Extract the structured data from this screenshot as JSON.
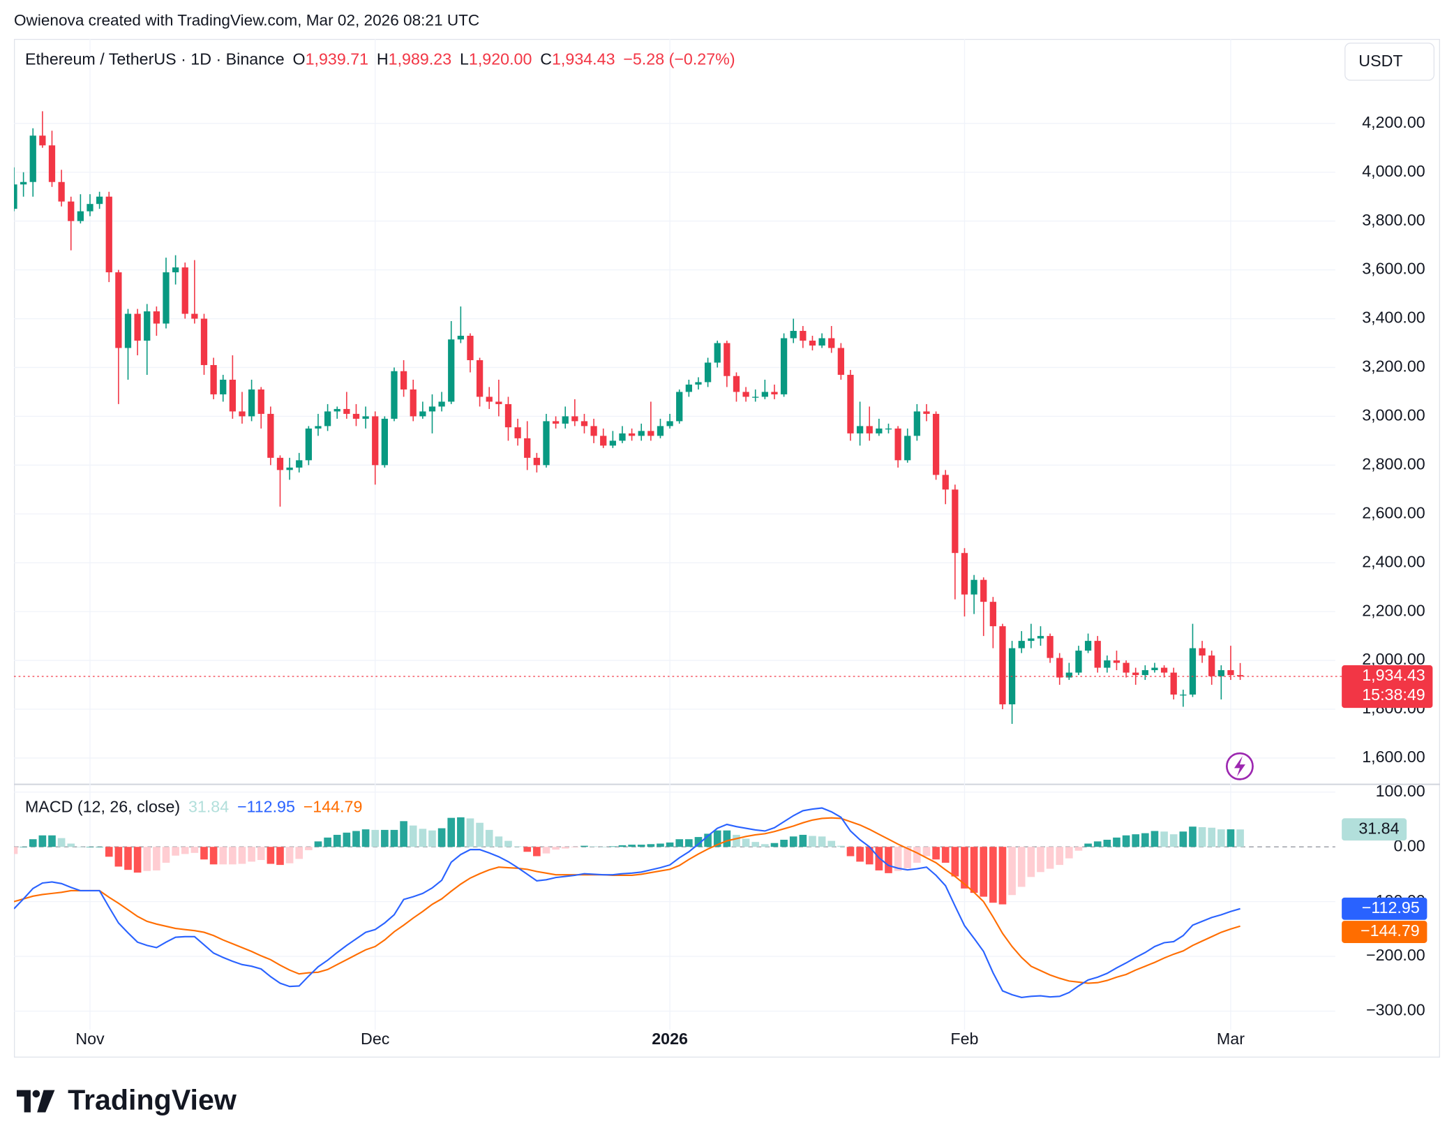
{
  "attribution": "Owienova created with TradingView.com, Mar 02, 2026 08:21 UTC",
  "logo": "TradingView",
  "chart_data": [
    {
      "type": "candlestick",
      "symbol": "Ethereum / TetherUS · 1D · Binance",
      "ohlc": [
        {
          "key": "O",
          "value": "1,939.71"
        },
        {
          "key": "H",
          "value": "1,989.23"
        },
        {
          "key": "L",
          "value": "1,920.00"
        },
        {
          "key": "C",
          "value": "1,934.43"
        }
      ],
      "change": "−5.28 (−0.27%)",
      "currency": "USDT",
      "last_price_label": "1,934.43",
      "countdown": "15:38:49",
      "colors": {
        "up": "#089981",
        "down": "#f23645"
      },
      "grid": true,
      "xlim": [
        0,
        139
      ],
      "xticks": [
        {
          "value": 8,
          "label": "Nov"
        },
        {
          "value": 38,
          "label": "Dec"
        },
        {
          "value": 69,
          "label": "2026"
        },
        {
          "value": 100,
          "label": "Feb"
        },
        {
          "value": 128,
          "label": "Mar"
        }
      ],
      "ylim": [
        1494,
        4546
      ],
      "yticks": [
        {
          "value": 1600,
          "label": "1,600.00"
        },
        {
          "value": 1800,
          "label": "1,800.00"
        },
        {
          "value": 2000,
          "label": "2,000.00"
        },
        {
          "value": 2200,
          "label": "2,200.00"
        },
        {
          "value": 2400,
          "label": "2,400.00"
        },
        {
          "value": 2600,
          "label": "2,600.00"
        },
        {
          "value": 2800,
          "label": "2,800.00"
        },
        {
          "value": 3000,
          "label": "3,000.00"
        },
        {
          "value": 3200,
          "label": "3,200.00"
        },
        {
          "value": 3400,
          "label": "3,400.00"
        },
        {
          "value": 3600,
          "label": "3,600.00"
        },
        {
          "value": 3800,
          "label": "3,800.00"
        },
        {
          "value": 4000,
          "label": "4,000.00"
        },
        {
          "value": 4200,
          "label": "4,200.00"
        }
      ],
      "open": [
        3850,
        3950,
        3960,
        4150,
        4110,
        3960,
        3880,
        3800,
        3840,
        3870,
        3900,
        3590,
        3280,
        3420,
        3310,
        3430,
        3380,
        3590,
        3610,
        3420,
        3400,
        3210,
        3090,
        3150,
        3020,
        3000,
        3110,
        3010,
        2830,
        2780,
        2790,
        2820,
        2950,
        2960,
        3020,
        3030,
        3010,
        2990,
        3000,
        2800,
        2990,
        3185,
        3110,
        3000,
        3020,
        3040,
        3060,
        3315,
        3330,
        3230,
        3080,
        3060,
        3050,
        2955,
        2910,
        2830,
        2800,
        2980,
        2970,
        3000,
        2980,
        2960,
        2920,
        2880,
        2900,
        2930,
        2920,
        2940,
        2920,
        2960,
        2980,
        3100,
        3130,
        3140,
        3220,
        3300,
        3165,
        3100,
        3080,
        3080,
        3100,
        3090,
        3320,
        3350,
        3310,
        3290,
        3320,
        3280,
        3170,
        2930,
        2960,
        2930,
        2950,
        2950,
        2820,
        2920,
        3020,
        3010,
        2760,
        2700,
        2440,
        2270,
        2330,
        2240,
        2140,
        1820,
        2050,
        2080,
        2090,
        2100,
        2010,
        1930,
        1950,
        2040,
        2080,
        1970,
        2000,
        1990,
        1950,
        1940,
        1960,
        1970,
        1950,
        1860,
        1860,
        2050,
        2020,
        1935,
        1960,
        1939.71
      ],
      "high": [
        4020,
        4000,
        4180,
        4250,
        4170,
        4010,
        3900,
        3910,
        3910,
        3920,
        3920,
        3600,
        3440,
        3440,
        3460,
        3450,
        3650,
        3660,
        3630,
        3640,
        3420,
        3240,
        3170,
        3250,
        3100,
        3150,
        3120,
        3040,
        2840,
        2830,
        2850,
        2960,
        3010,
        3050,
        3040,
        3100,
        3050,
        3040,
        3020,
        3000,
        3200,
        3230,
        3150,
        3060,
        3090,
        3100,
        3390,
        3450,
        3340,
        3240,
        3120,
        3150,
        3080,
        2990,
        2980,
        2850,
        3010,
        3000,
        3040,
        3070,
        3010,
        2990,
        2950,
        2940,
        2960,
        2950,
        2970,
        3060,
        2990,
        3010,
        3110,
        3150,
        3160,
        3240,
        3310,
        3310,
        3180,
        3120,
        3110,
        3150,
        3130,
        3340,
        3400,
        3370,
        3330,
        3340,
        3370,
        3300,
        3190,
        3060,
        3040,
        2990,
        2970,
        2960,
        2950,
        3050,
        3050,
        3020,
        2780,
        2720,
        2460,
        2350,
        2340,
        2260,
        2150,
        2080,
        2120,
        2150,
        2140,
        2110,
        2030,
        1990,
        2060,
        2110,
        2100,
        2020,
        2040,
        2000,
        1970,
        1980,
        1990,
        1980,
        1970,
        1880,
        2150,
        2080,
        2040,
        1980,
        2060,
        1989.23
      ],
      "low": [
        3840,
        3900,
        3900,
        4100,
        3940,
        3860,
        3680,
        3790,
        3820,
        3850,
        3550,
        3050,
        3150,
        3250,
        3170,
        3330,
        3360,
        3540,
        3400,
        3380,
        3170,
        3070,
        3060,
        2990,
        2970,
        2980,
        2950,
        2800,
        2630,
        2740,
        2770,
        2800,
        2920,
        2940,
        2990,
        2990,
        2960,
        2950,
        2720,
        2790,
        2980,
        3080,
        2980,
        2990,
        2930,
        3020,
        3050,
        3300,
        3180,
        3040,
        3030,
        3000,
        2900,
        2880,
        2780,
        2770,
        2790,
        2950,
        2950,
        2960,
        2930,
        2890,
        2870,
        2870,
        2890,
        2900,
        2900,
        2900,
        2910,
        2950,
        2970,
        3080,
        3110,
        3120,
        3200,
        3120,
        3060,
        3060,
        3060,
        3070,
        3070,
        3080,
        3300,
        3280,
        3270,
        3280,
        3260,
        3150,
        2900,
        2880,
        2900,
        2920,
        2930,
        2790,
        2810,
        2900,
        2980,
        2740,
        2640,
        2250,
        2180,
        2190,
        2100,
        2050,
        1800,
        1740,
        2030,
        2050,
        2060,
        1990,
        1900,
        1920,
        1940,
        2030,
        1950,
        1950,
        1960,
        1930,
        1900,
        1920,
        1950,
        1930,
        1840,
        1810,
        1850,
        1990,
        1900,
        1840,
        1920,
        1920
      ],
      "close": [
        3950,
        3960,
        4150,
        4110,
        3960,
        3880,
        3800,
        3840,
        3870,
        3900,
        3590,
        3280,
        3420,
        3310,
        3430,
        3380,
        3590,
        3610,
        3420,
        3400,
        3210,
        3090,
        3150,
        3020,
        3000,
        3110,
        3010,
        2830,
        2780,
        2790,
        2820,
        2950,
        2960,
        3020,
        3030,
        3010,
        2990,
        3000,
        2800,
        2990,
        3185,
        3110,
        3000,
        3020,
        3040,
        3060,
        3315,
        3330,
        3230,
        3080,
        3060,
        3050,
        2955,
        2910,
        2830,
        2800,
        2980,
        2970,
        3000,
        2980,
        2960,
        2920,
        2880,
        2900,
        2930,
        2920,
        2940,
        2920,
        2960,
        2980,
        3100,
        3130,
        3140,
        3220,
        3300,
        3165,
        3100,
        3080,
        3080,
        3100,
        3090,
        3320,
        3350,
        3310,
        3290,
        3320,
        3280,
        3170,
        2930,
        2960,
        2930,
        2950,
        2950,
        2820,
        2920,
        3020,
        3010,
        2760,
        2700,
        2440,
        2270,
        2330,
        2240,
        2140,
        1820,
        2050,
        2080,
        2090,
        2100,
        2010,
        1930,
        1950,
        2040,
        2080,
        1970,
        2000,
        1990,
        1950,
        1940,
        1960,
        1970,
        1950,
        1860,
        1860,
        2050,
        2020,
        1935,
        1960,
        1939.71,
        1934.43
      ]
    },
    {
      "type": "macd",
      "title": "MACD (12, 26, close)",
      "labels": {
        "histogram": "31.84",
        "macd": "−112.95",
        "signal": "−144.79"
      },
      "colors": {
        "macd": "#2962ff",
        "signal": "#ff6d00",
        "hist_up_grow": "#26a69a",
        "hist_up_fall": "#b2dfdb",
        "hist_down_grow": "#ff5252",
        "hist_down_fall": "#ffcdd2"
      },
      "ylim": [
        -334,
        115
      ],
      "yticks": [
        {
          "value": -300,
          "label": "−300.00"
        },
        {
          "value": -200,
          "label": "−200.00"
        },
        {
          "value": -100,
          "label": "−100.00"
        },
        {
          "value": 0,
          "label": "0.00"
        },
        {
          "value": 100,
          "label": "100.00"
        }
      ],
      "histogram": [
        -13,
        0,
        14,
        21,
        21,
        16,
        6,
        0,
        0,
        0,
        -18,
        -36,
        -42,
        -47,
        -44,
        -43,
        -29,
        -16,
        -13,
        -11,
        -23,
        -32,
        -32,
        -32,
        -31,
        -27,
        -24,
        -31,
        -33,
        -30,
        -22,
        -6,
        10,
        17,
        22,
        26,
        29,
        32,
        31,
        31,
        31,
        47,
        39,
        33,
        30,
        34,
        53,
        54,
        52,
        44,
        31,
        19,
        11,
        1,
        -9,
        -17,
        -12,
        -5,
        -3,
        -1,
        2,
        1,
        0,
        1,
        3,
        4,
        4,
        5,
        6,
        8,
        14,
        14,
        18,
        24,
        30,
        30,
        22,
        15,
        9,
        5,
        7,
        13,
        19,
        22,
        20,
        19,
        11,
        2,
        -17,
        -27,
        -32,
        -43,
        -48,
        -44,
        -39,
        -29,
        -17,
        -23,
        -29,
        -54,
        -76,
        -84,
        -91,
        -102,
        -105,
        -88,
        -73,
        -55,
        -46,
        -40,
        -33,
        -21,
        -7,
        6,
        10,
        13,
        17,
        21,
        23,
        25,
        29,
        28,
        23,
        28,
        37,
        36,
        35,
        32,
        32,
        31.84
      ],
      "macd": [
        -113,
        -95,
        -76,
        -66,
        -64,
        -67,
        -74,
        -80,
        -80,
        -80,
        -110,
        -139,
        -157,
        -174,
        -180,
        -184,
        -174,
        -165,
        -164,
        -164,
        -179,
        -194,
        -202,
        -209,
        -215,
        -218,
        -223,
        -237,
        -249,
        -255,
        -254,
        -236,
        -219,
        -207,
        -193,
        -180,
        -168,
        -156,
        -151,
        -139,
        -124,
        -96,
        -91,
        -85,
        -75,
        -61,
        -28,
        -14,
        -5,
        -5,
        -11,
        -18,
        -27,
        -38,
        -50,
        -62,
        -60,
        -56,
        -54,
        -52,
        -49,
        -50,
        -51,
        -51,
        -49,
        -48,
        -46,
        -42,
        -38,
        -33,
        -20,
        -9,
        5,
        20,
        34,
        41,
        37,
        34,
        31,
        29,
        35,
        46,
        57,
        66,
        69,
        71,
        64,
        54,
        29,
        13,
        0,
        -20,
        -34,
        -39,
        -42,
        -40,
        -37,
        -52,
        -71,
        -108,
        -144,
        -167,
        -191,
        -230,
        -263,
        -270,
        -275,
        -273,
        -272,
        -274,
        -273,
        -266,
        -254,
        -243,
        -238,
        -231,
        -221,
        -212,
        -202,
        -193,
        -182,
        -175,
        -173,
        -162,
        -143,
        -136,
        -129,
        -124,
        -118,
        -112.95
      ],
      "signal": [
        -100,
        -95,
        -90,
        -87,
        -85,
        -83,
        -80,
        -80,
        -80,
        -80,
        -92,
        -103,
        -115,
        -127,
        -136,
        -141,
        -145,
        -149,
        -151,
        -153,
        -156,
        -162,
        -170,
        -177,
        -184,
        -191,
        -199,
        -206,
        -216,
        -225,
        -232,
        -230,
        -229,
        -224,
        -215,
        -206,
        -197,
        -188,
        -182,
        -170,
        -155,
        -143,
        -130,
        -118,
        -105,
        -95,
        -81,
        -68,
        -57,
        -49,
        -42,
        -37,
        -38,
        -39,
        -41,
        -45,
        -48,
        -51,
        -51,
        -51,
        -51,
        -51,
        -51,
        -52,
        -52,
        -52,
        -50,
        -47,
        -44,
        -41,
        -34,
        -23,
        -13,
        -4,
        4,
        11,
        15,
        19,
        22,
        24,
        28,
        33,
        38,
        44,
        49,
        52,
        53,
        52,
        46,
        40,
        32,
        23,
        14,
        5,
        -3,
        -11,
        -20,
        -29,
        -42,
        -54,
        -68,
        -83,
        -100,
        -128,
        -158,
        -182,
        -202,
        -218,
        -226,
        -234,
        -240,
        -245,
        -247,
        -249,
        -248,
        -244,
        -238,
        -233,
        -225,
        -218,
        -211,
        -203,
        -196,
        -190,
        -180,
        -172,
        -164,
        -156,
        -150,
        -144.79
      ]
    }
  ]
}
